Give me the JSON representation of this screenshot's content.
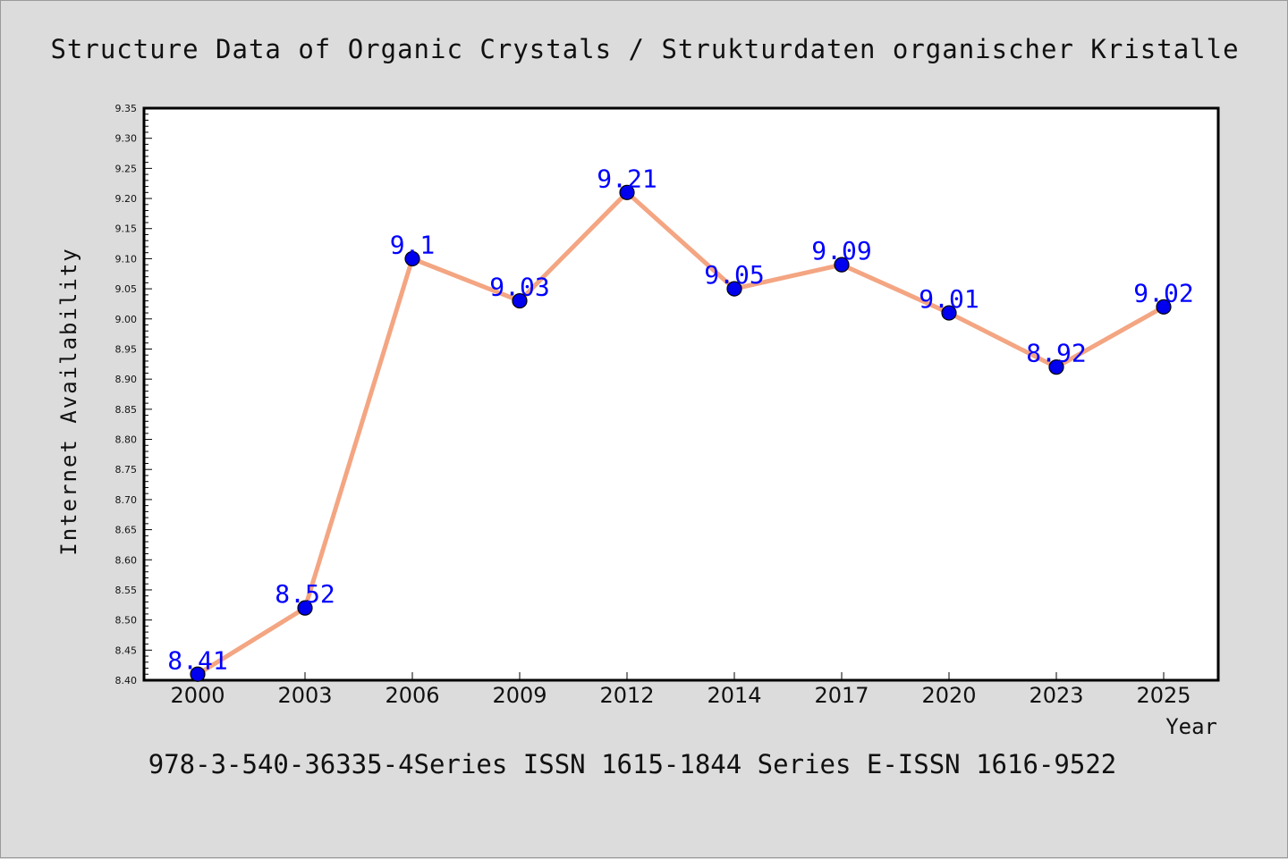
{
  "chart_data": {
    "type": "line",
    "title": "Structure Data of Organic Crystals / Strukturdaten organischer Kristalle",
    "footer": "978-3-540-36335-4Series ISSN 1615-1844 Series E-ISSN 1616-9522",
    "xlabel": "Year",
    "ylabel": "Internet Availability",
    "categories": [
      "2000",
      "2003",
      "2006",
      "2009",
      "2012",
      "2014",
      "2017",
      "2020",
      "2023",
      "2025"
    ],
    "series": [
      {
        "values": [
          8.41,
          8.52,
          9.1,
          9.03,
          9.21,
          9.05,
          9.09,
          9.01,
          8.92,
          9.02
        ]
      }
    ],
    "data_labels": [
      "8.41",
      "8.52",
      "9.1",
      "9.03",
      "9.21",
      "9.05",
      "9.09",
      "9.01",
      "8.92",
      "9.02"
    ],
    "ylim": [
      8.4,
      9.35
    ],
    "ytick_labels": [
      "8.40",
      "8.45",
      "8.50",
      "8.55",
      "8.60",
      "8.65",
      "8.70",
      "8.75",
      "8.80",
      "8.85",
      "8.90",
      "8.95",
      "9.00",
      "9.05",
      "9.10",
      "9.15",
      "9.20",
      "9.25",
      "9.30",
      "9.35"
    ],
    "grid": false,
    "legend": "none",
    "colors": {
      "background": "#dcdcdc",
      "plot_background": "#ffffff",
      "line": "#f4a582",
      "marker": "#0000ee",
      "label": "#0000ff"
    }
  }
}
